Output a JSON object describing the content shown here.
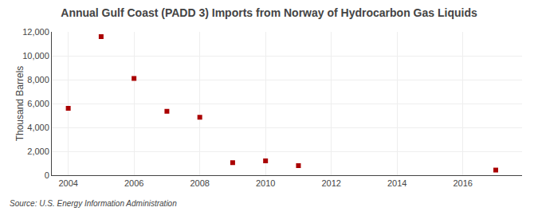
{
  "chart_data": {
    "type": "scatter",
    "title": "Annual Gulf Coast (PADD 3) Imports from Norway of Hydrocarbon Gas Liquids",
    "ylabel": "Thousand Barrels",
    "annotations": [
      "Source: U.S. Energy Information Administration"
    ],
    "x": [
      2004,
      2005,
      2006,
      2007,
      2008,
      2009,
      2010,
      2011,
      2017
    ],
    "values": [
      5600,
      11600,
      8100,
      5350,
      4850,
      1050,
      1200,
      800,
      430
    ],
    "color": "#aa0000",
    "marker": "square",
    "xlim": [
      2003.5,
      2017.8
    ],
    "ylim": [
      0,
      12000
    ],
    "xticks": [
      2004,
      2006,
      2008,
      2010,
      2012,
      2014,
      2016
    ],
    "yticks": [
      0,
      {
        "value": 2000,
        "label": "2,000"
      },
      {
        "value": 4000,
        "label": "4,000"
      },
      {
        "value": 6000,
        "label": "6,000"
      },
      {
        "value": 8000,
        "label": "8,000"
      },
      {
        "value": 10000,
        "label": "10,000"
      },
      {
        "value": 12000,
        "label": "12,000"
      }
    ],
    "grid": true
  }
}
